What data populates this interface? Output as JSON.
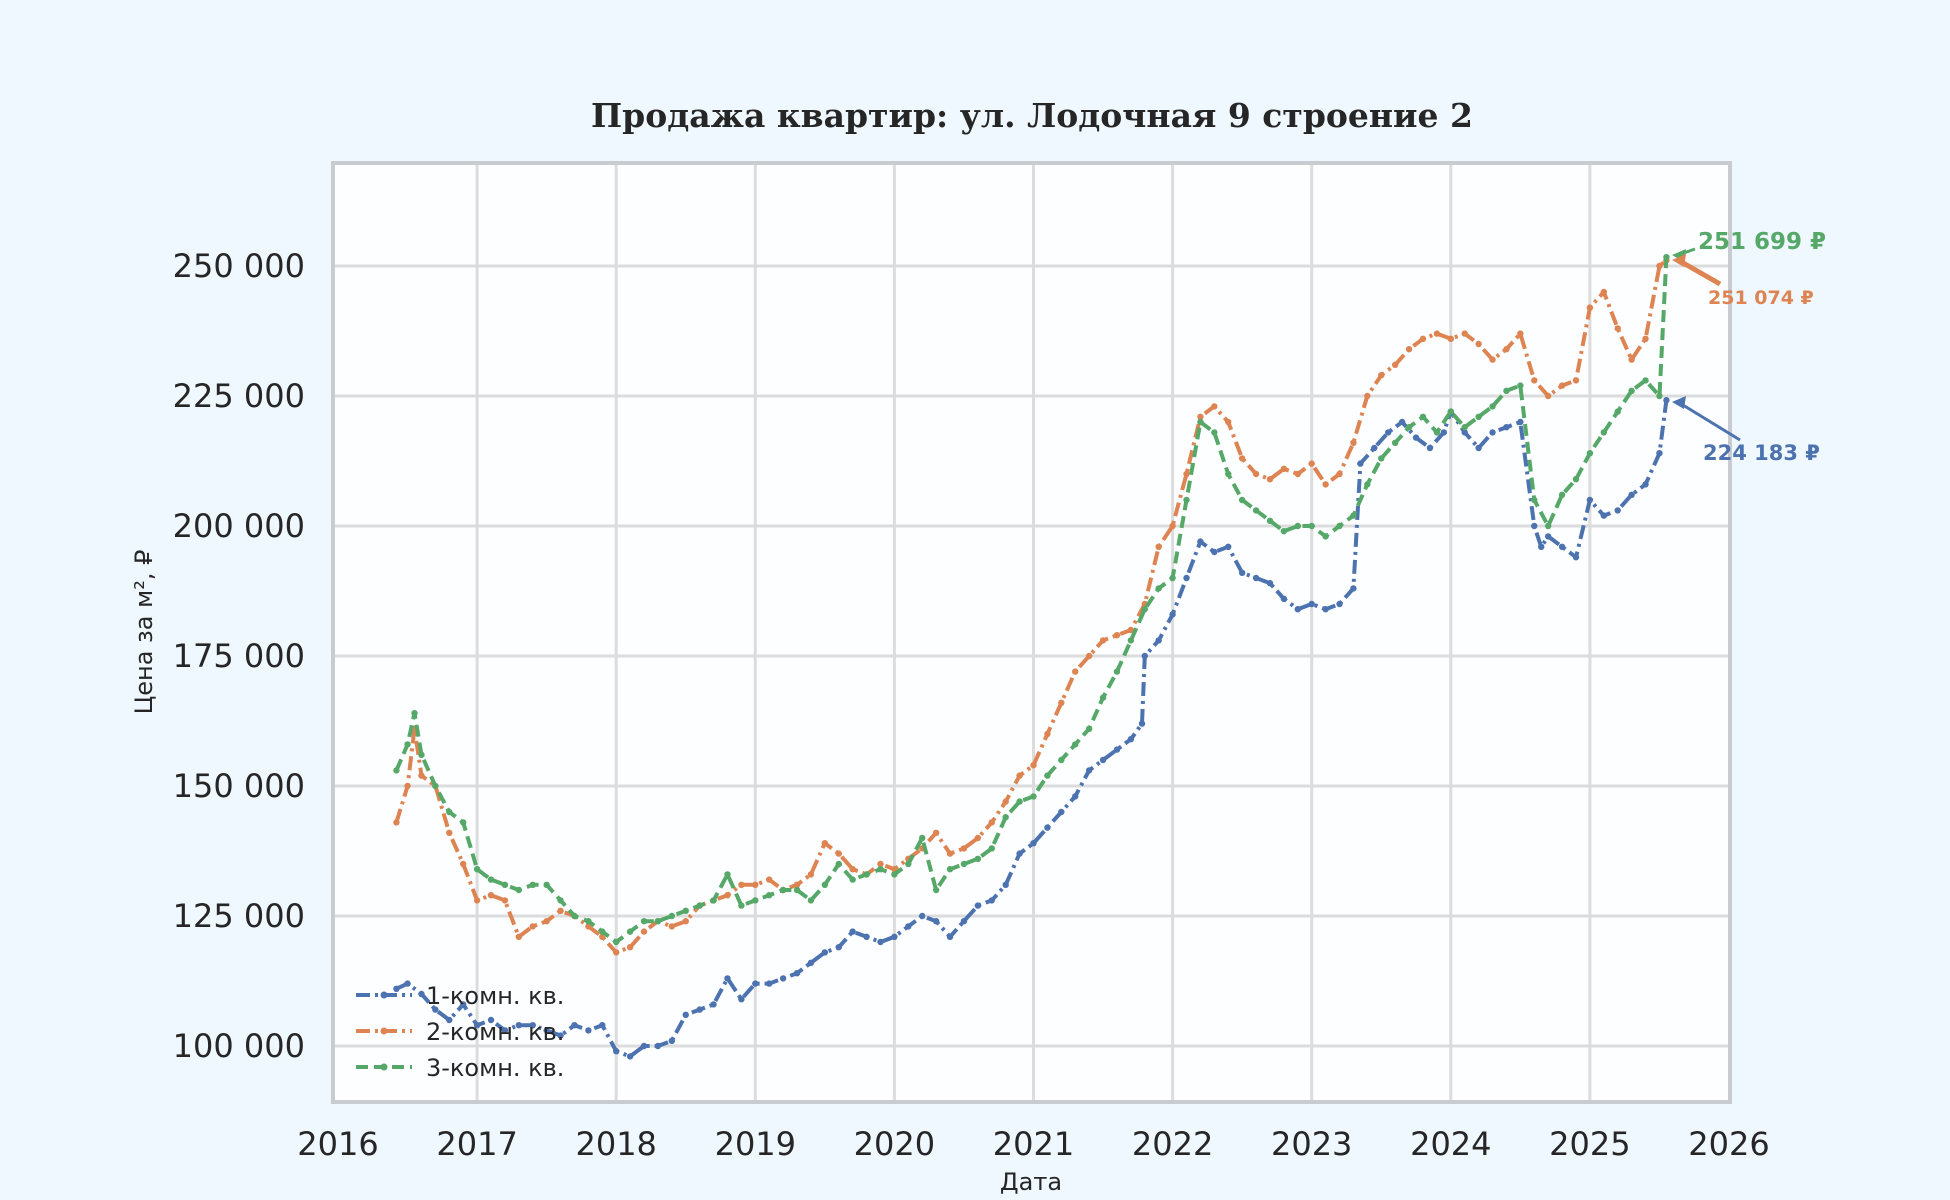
{
  "chart_data": {
    "type": "line",
    "title": "Продажа квартир: ул. Лодочная 9 строение 2",
    "xlabel": "Дата",
    "ylabel": "Цена за м², ₽",
    "xlim": [
      2016,
      2026
    ],
    "ylim": [
      89000,
      266000
    ],
    "x_ticks": [
      "2016",
      "2017",
      "2018",
      "2019",
      "2020",
      "2021",
      "2022",
      "2023",
      "2024",
      "2025",
      "2026"
    ],
    "y_ticks": [
      {
        "value": 100000,
        "label": "100 000"
      },
      {
        "value": 125000,
        "label": "125 000"
      },
      {
        "value": 150000,
        "label": "150 000"
      },
      {
        "value": 175000,
        "label": "175 000"
      },
      {
        "value": 200000,
        "label": "200 000"
      },
      {
        "value": 225000,
        "label": "225 000"
      },
      {
        "value": 250000,
        "label": "250 000"
      }
    ],
    "grid": true,
    "legend_position": "lower left",
    "series": [
      {
        "name": "1-комн. кв.",
        "color": "#4c72b0",
        "dash": "14 5 3 5",
        "x": [
          2016.42,
          2016.5,
          2016.6,
          2016.7,
          2016.8,
          2016.9,
          2017.0,
          2017.1,
          2017.2,
          2017.3,
          2017.4,
          2017.5,
          2017.6,
          2017.7,
          2017.8,
          2017.9,
          2018.0,
          2018.1,
          2018.2,
          2018.3,
          2018.4,
          2018.5,
          2018.6,
          2018.7,
          2018.8,
          2018.9,
          2019.0,
          2019.1,
          2019.2,
          2019.3,
          2019.4,
          2019.5,
          2019.6,
          2019.7,
          2019.8,
          2019.9,
          2020.0,
          2020.1,
          2020.2,
          2020.3,
          2020.4,
          2020.5,
          2020.6,
          2020.7,
          2020.8,
          2020.9,
          2021.0,
          2021.1,
          2021.2,
          2021.3,
          2021.4,
          2021.5,
          2021.6,
          2021.7,
          2021.78,
          2021.8,
          2021.9,
          2022.0,
          2022.1,
          2022.2,
          2022.3,
          2022.4,
          2022.5,
          2022.6,
          2022.7,
          2022.8,
          2022.9,
          2023.0,
          2023.1,
          2023.2,
          2023.3,
          2023.35,
          2023.45,
          2023.55,
          2023.65,
          2023.75,
          2023.85,
          2023.95,
          2024.0,
          2024.1,
          2024.2,
          2024.3,
          2024.4,
          2024.5,
          2024.6,
          2024.65,
          2024.7,
          2024.8,
          2024.9,
          2025.0,
          2025.1,
          2025.2,
          2025.3,
          2025.4,
          2025.5,
          2025.55
        ],
        "y": [
          111000,
          112000,
          110000,
          107000,
          105000,
          108000,
          104000,
          105000,
          103000,
          104000,
          104000,
          103000,
          102000,
          104000,
          103000,
          104000,
          99000,
          98000,
          100000,
          100000,
          101000,
          106000,
          107000,
          108000,
          113000,
          109000,
          112000,
          112000,
          113000,
          114000,
          116000,
          118000,
          119000,
          122000,
          121000,
          120000,
          121000,
          123000,
          125000,
          124000,
          121000,
          124000,
          127000,
          128000,
          131000,
          137000,
          139000,
          142000,
          145000,
          148000,
          153000,
          155000,
          157000,
          159000,
          162000,
          175000,
          178000,
          183000,
          190000,
          197000,
          195000,
          196000,
          191000,
          190000,
          189000,
          186000,
          184000,
          185000,
          184000,
          185000,
          188000,
          212000,
          215000,
          218000,
          220000,
          217000,
          215000,
          218000,
          222000,
          218000,
          215000,
          218000,
          219000,
          220000,
          200000,
          196000,
          198000,
          196000,
          194000,
          205000,
          202000,
          203000,
          206000,
          208000,
          214000,
          224183
        ]
      },
      {
        "name": "2-комн. кв.",
        "color": "#dd8452",
        "dash": "14 5 3 5",
        "x": [
          2016.42,
          2016.5,
          2016.55,
          2016.6,
          2016.7,
          2016.8,
          2016.9,
          2017.0,
          2017.1,
          2017.2,
          2017.3,
          2017.4,
          2017.5,
          2017.6,
          2017.7,
          2017.8,
          2017.9,
          2018.0,
          2018.1,
          2018.2,
          2018.3,
          2018.4,
          2018.5,
          2018.6,
          2018.7,
          2018.8,
          2018.9,
          2019.0,
          2019.1,
          2019.2,
          2019.3,
          2019.4,
          2019.5,
          2019.6,
          2019.7,
          2019.8,
          2019.9,
          2020.0,
          2020.1,
          2020.2,
          2020.3,
          2020.4,
          2020.5,
          2020.6,
          2020.7,
          2020.8,
          2020.9,
          2021.0,
          2021.1,
          2021.2,
          2021.3,
          2021.4,
          2021.5,
          2021.6,
          2021.7,
          2021.8,
          2021.9,
          2022.0,
          2022.1,
          2022.2,
          2022.3,
          2022.4,
          2022.5,
          2022.6,
          2022.7,
          2022.8,
          2022.9,
          2023.0,
          2023.1,
          2023.2,
          2023.3,
          2023.4,
          2023.5,
          2023.6,
          2023.7,
          2023.8,
          2023.9,
          2024.0,
          2024.1,
          2024.2,
          2024.3,
          2024.4,
          2024.5,
          2024.6,
          2024.7,
          2024.8,
          2024.9,
          2025.0,
          2025.1,
          2025.2,
          2025.3,
          2025.4,
          2025.5,
          2025.55
        ],
        "y": [
          143000,
          150000,
          161000,
          152000,
          150000,
          141000,
          135000,
          128000,
          129000,
          128000,
          121000,
          123000,
          124000,
          126000,
          125000,
          123000,
          121000,
          118000,
          119000,
          122000,
          124000,
          123000,
          124000,
          127000,
          128000,
          129000,
          131000,
          131000,
          132000,
          130000,
          131000,
          133000,
          139000,
          137000,
          134000,
          133000,
          135000,
          134000,
          136000,
          138000,
          141000,
          137000,
          138000,
          140000,
          143000,
          147000,
          152000,
          154000,
          160000,
          166000,
          172000,
          175000,
          178000,
          179000,
          180000,
          185000,
          196000,
          200000,
          210000,
          221000,
          223000,
          220000,
          213000,
          210000,
          209000,
          211000,
          210000,
          212000,
          208000,
          210000,
          216000,
          225000,
          229000,
          231000,
          234000,
          236000,
          237000,
          236000,
          237000,
          235000,
          232000,
          234000,
          237000,
          228000,
          225000,
          227000,
          228000,
          242000,
          245000,
          238000,
          232000,
          236000,
          250000,
          251074
        ]
      },
      {
        "name": "3-комн. кв.",
        "color": "#55a868",
        "dash": "12 6",
        "x": [
          2016.42,
          2016.5,
          2016.55,
          2016.6,
          2016.7,
          2016.8,
          2016.9,
          2017.0,
          2017.1,
          2017.2,
          2017.3,
          2017.4,
          2017.5,
          2017.6,
          2017.7,
          2017.8,
          2017.9,
          2018.0,
          2018.1,
          2018.2,
          2018.3,
          2018.4,
          2018.5,
          2018.6,
          2018.7,
          2018.8,
          2018.9,
          2019.0,
          2019.1,
          2019.2,
          2019.3,
          2019.4,
          2019.5,
          2019.6,
          2019.7,
          2019.8,
          2019.9,
          2020.0,
          2020.1,
          2020.2,
          2020.3,
          2020.4,
          2020.5,
          2020.6,
          2020.7,
          2020.8,
          2020.9,
          2021.0,
          2021.1,
          2021.2,
          2021.3,
          2021.4,
          2021.5,
          2021.6,
          2021.7,
          2021.8,
          2021.9,
          2022.0,
          2022.1,
          2022.2,
          2022.3,
          2022.4,
          2022.5,
          2022.6,
          2022.7,
          2022.8,
          2022.9,
          2023.0,
          2023.1,
          2023.2,
          2023.3,
          2023.4,
          2023.5,
          2023.6,
          2023.7,
          2023.8,
          2023.9,
          2024.0,
          2024.1,
          2024.2,
          2024.3,
          2024.4,
          2024.5,
          2024.6,
          2024.7,
          2024.8,
          2024.9,
          2025.0,
          2025.1,
          2025.2,
          2025.3,
          2025.4,
          2025.5,
          2025.55
        ],
        "y": [
          153000,
          158000,
          164000,
          156000,
          150000,
          145000,
          143000,
          134000,
          132000,
          131000,
          130000,
          131000,
          131000,
          128000,
          125000,
          124000,
          122000,
          120000,
          122000,
          124000,
          124000,
          125000,
          126000,
          127000,
          128000,
          133000,
          127000,
          128000,
          129000,
          130000,
          130000,
          128000,
          131000,
          135000,
          132000,
          133000,
          134000,
          133000,
          135000,
          140000,
          130000,
          134000,
          135000,
          136000,
          138000,
          144000,
          147000,
          148000,
          152000,
          155000,
          158000,
          161000,
          167000,
          172000,
          178000,
          184000,
          188000,
          190000,
          205000,
          220000,
          218000,
          210000,
          205000,
          203000,
          201000,
          199000,
          200000,
          200000,
          198000,
          200000,
          202000,
          208000,
          213000,
          216000,
          219000,
          221000,
          218000,
          222000,
          219000,
          221000,
          223000,
          226000,
          227000,
          205000,
          200000,
          206000,
          209000,
          214000,
          218000,
          222000,
          226000,
          228000,
          225000,
          251699
        ]
      }
    ],
    "annotations": [
      {
        "series": "3-комн. кв.",
        "label": "251 699 ₽",
        "color": "#55a868",
        "value": 251699
      },
      {
        "series": "2-комн. кв.",
        "label": "251 074 ₽",
        "color": "#dd8452",
        "value": 251074
      },
      {
        "series": "1-комн. кв.",
        "label": "224 183 ₽",
        "color": "#4c72b0",
        "value": 224183
      }
    ]
  }
}
